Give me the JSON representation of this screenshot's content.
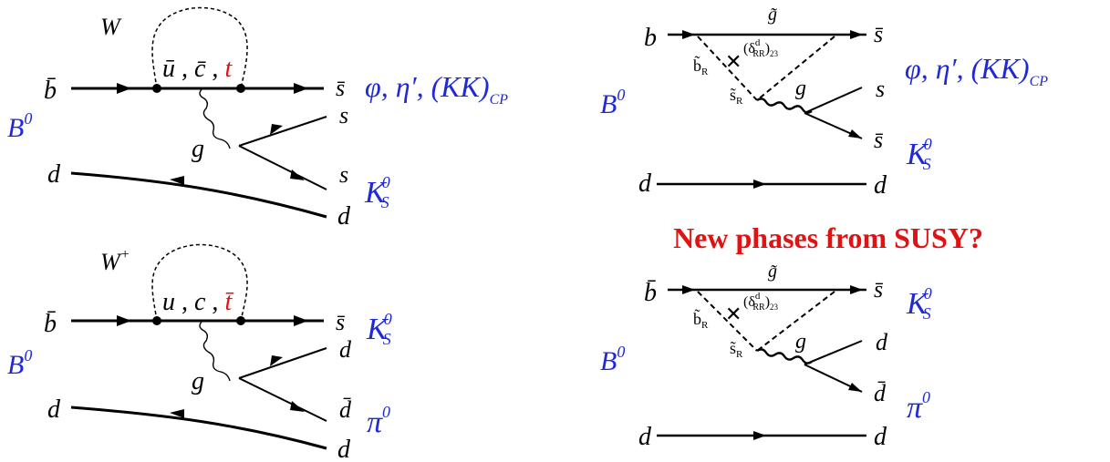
{
  "title": "New phases from SUSY?",
  "colors": {
    "label": "#1f2ad6",
    "emphasis": "#e01212",
    "line": "#000000"
  },
  "left_top": {
    "boson": "W",
    "loop_quarks_prefix": "ū , c̄ , ",
    "loop_quark_top": "t",
    "gluon": "g",
    "in_quark": "b̄",
    "meson": "B",
    "meson_sup": "0",
    "spectator_in": "d",
    "out_1": "s̄",
    "out_2": "s",
    "out_3": "s",
    "out_4": "d",
    "final_state_1": "φ, η′, (KK)",
    "final_state_1_sub": "CP",
    "final_state_2": "K",
    "final_state_2_sup": "0",
    "final_state_2_sub": "S"
  },
  "left_bottom": {
    "boson": "W",
    "boson_sup": "+",
    "loop_quarks_prefix": "u , c , ",
    "loop_quark_top": "t̄",
    "gluon": "g",
    "in_quark": "b̄",
    "meson": "B",
    "meson_sup": "0",
    "spectator_in": "d",
    "out_1": "s̄",
    "out_2": "d",
    "out_3": "d̄",
    "out_4": "d",
    "final_state_1": "K",
    "final_state_1_sup": "0",
    "final_state_1_sub": "S",
    "final_state_2": "π",
    "final_state_2_sup": "0"
  },
  "right_top": {
    "gluino": "g̃",
    "squark_b": "b̃",
    "squark_b_sub": "R",
    "squark_s": "s̃",
    "squark_s_sub": "R",
    "mass_insertion": "(δ",
    "mass_insertion_sup": "d",
    "mass_insertion_sub": "RR",
    "mass_insertion_close": ")",
    "mass_insertion_close_sub": "23",
    "gluon": "g",
    "in_quark": "b",
    "meson": "B",
    "meson_sup": "0",
    "spectator_in": "d",
    "out_1": "s̄",
    "out_2": "s",
    "out_3": "s̄",
    "out_4": "d",
    "final_state_1": "φ, η′, (KK)",
    "final_state_1_sub": "CP",
    "final_state_2": "K",
    "final_state_2_sup": "0",
    "final_state_2_sub": "S"
  },
  "right_bottom": {
    "gluino": "g̃",
    "squark_b": "b̃",
    "squark_b_sub": "R",
    "squark_s": "s̃",
    "squark_s_sub": "R",
    "mass_insertion": "(δ",
    "mass_insertion_sup": "d",
    "mass_insertion_sub": "RR",
    "mass_insertion_close": ")",
    "mass_insertion_close_sub": "23",
    "gluon": "g",
    "in_quark": "b̄",
    "meson": "B",
    "meson_sup": "0",
    "spectator_in": "d",
    "out_1": "s̄",
    "out_2": "d",
    "out_3": "d̄",
    "out_4": "d",
    "final_state_1": "K",
    "final_state_1_sup": "0",
    "final_state_1_sub": "S",
    "final_state_2": "π",
    "final_state_2_sup": "0"
  }
}
